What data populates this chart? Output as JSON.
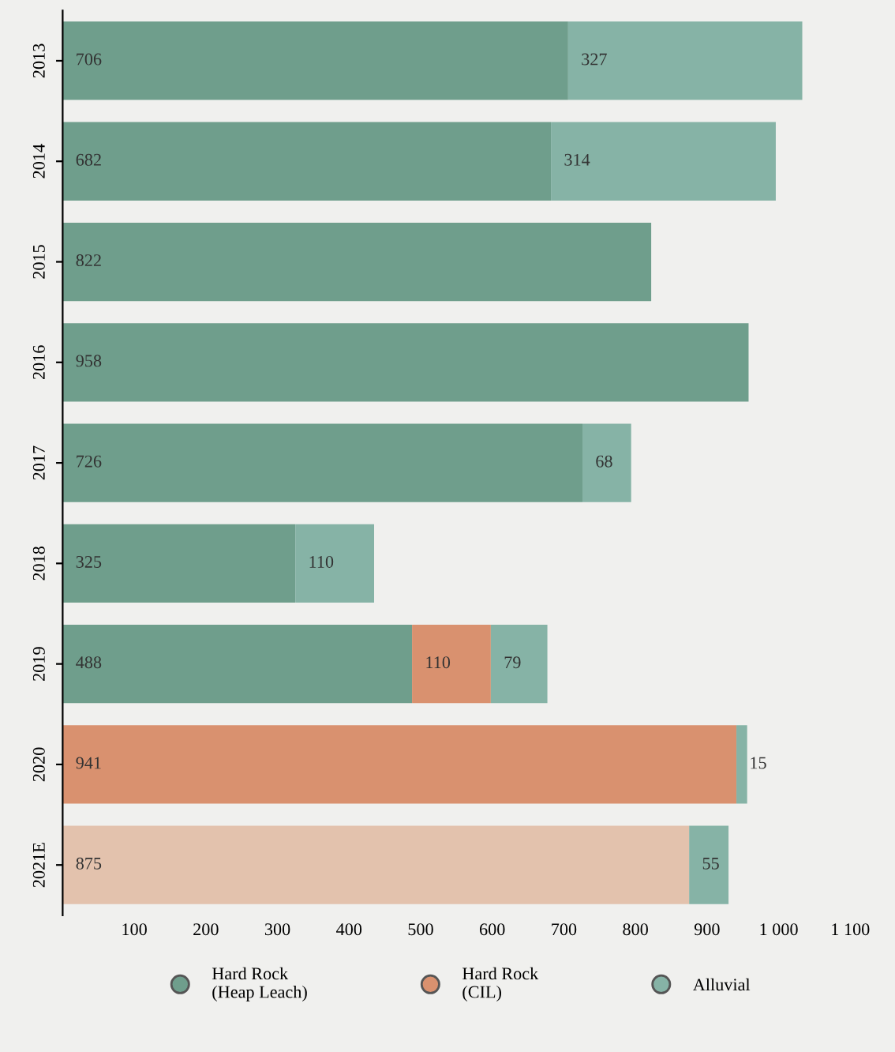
{
  "chart_data": {
    "type": "bar",
    "orientation": "horizontal",
    "stacked": true,
    "categories": [
      "2013",
      "2014",
      "2015",
      "2016",
      "2017",
      "2018",
      "2019",
      "2020",
      "2021E"
    ],
    "series": [
      {
        "name": "Hard Rock (Heap Leach)",
        "color": "#6f9e8c",
        "values": [
          706,
          682,
          822,
          958,
          726,
          325,
          488,
          null,
          null
        ],
        "value_labels": [
          "706",
          "682",
          "822",
          "958",
          "726",
          "325",
          "488",
          null,
          null
        ]
      },
      {
        "name": "Hard Rock (CIL)",
        "color": "#d9916f",
        "colors": [
          "#d9916f",
          "#d9916f",
          "#d9916f",
          "#d9916f",
          "#d9916f",
          "#d9916f",
          "#d9916f",
          "#d9916f",
          "#e3c2ad"
        ],
        "values": [
          null,
          null,
          null,
          null,
          null,
          null,
          110,
          941,
          875
        ],
        "value_labels": [
          null,
          null,
          null,
          null,
          null,
          null,
          "110",
          "941",
          "875"
        ]
      },
      {
        "name": "Alluvial",
        "color": "#86b3a6",
        "values": [
          327,
          314,
          null,
          null,
          68,
          110,
          79,
          15,
          55
        ],
        "value_labels": [
          "327",
          "314",
          null,
          null,
          "68",
          "110",
          "79",
          "15",
          "55"
        ]
      }
    ],
    "xlim": [
      0,
      1100
    ],
    "xticks": [
      100,
      200,
      300,
      400,
      500,
      600,
      700,
      800,
      900,
      {
        "value": 1000,
        "label": "1 000"
      },
      {
        "value": 1100,
        "label": "1 100"
      }
    ],
    "grid": false,
    "legend": "bottom"
  }
}
